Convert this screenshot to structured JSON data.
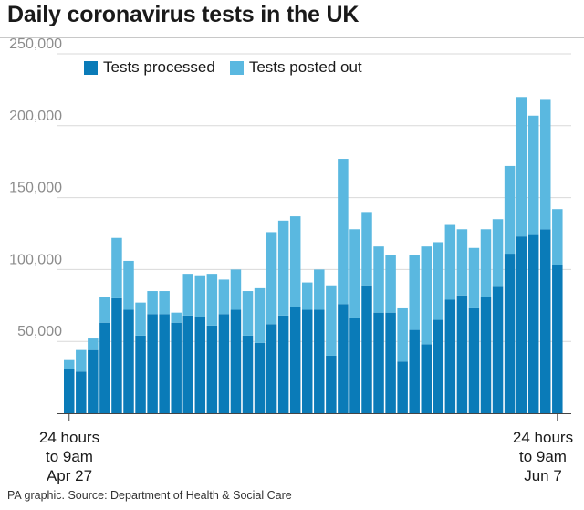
{
  "title": "Daily coronavirus tests in the UK",
  "source": "PA graphic. Source: Department of Health & Social Care",
  "chart_data": {
    "type": "bar",
    "stacked": true,
    "ylim": [
      0,
      250000
    ],
    "yticks": [
      50000,
      100000,
      150000,
      200000,
      250000
    ],
    "ytick_labels": [
      "50,000",
      "100,000",
      "150,000",
      "200,000",
      "250,000"
    ],
    "x_start_label": [
      "24 hours",
      "to 9am",
      "Apr 27"
    ],
    "x_end_label": [
      "24 hours",
      "to 9am",
      "Jun 7"
    ],
    "legend_position": "top-left",
    "grid": true,
    "series": [
      {
        "name": "Tests processed",
        "color": "#0a7bb8",
        "values": [
          31000,
          29000,
          44000,
          63000,
          80000,
          72000,
          54000,
          69000,
          69000,
          63000,
          68000,
          67000,
          61000,
          69000,
          72000,
          54000,
          49000,
          62000,
          68000,
          74000,
          72000,
          72000,
          40000,
          76000,
          66000,
          89000,
          70000,
          70000,
          36000,
          58000,
          48000,
          65000,
          79000,
          82000,
          73000,
          81000,
          88000,
          111000,
          123000,
          124000,
          128000,
          103000
        ]
      },
      {
        "name": "Tests posted out",
        "color": "#5ab8e0",
        "values": [
          6000,
          15000,
          8000,
          18000,
          42000,
          34000,
          23000,
          16000,
          16000,
          7000,
          29000,
          29000,
          36000,
          24000,
          28000,
          31000,
          38000,
          64000,
          66000,
          63000,
          19000,
          28000,
          49000,
          101000,
          62000,
          51000,
          46000,
          40000,
          37000,
          52000,
          68000,
          54000,
          52000,
          46000,
          42000,
          47000,
          47000,
          61000,
          97000,
          83000,
          90000,
          39000
        ]
      }
    ]
  }
}
